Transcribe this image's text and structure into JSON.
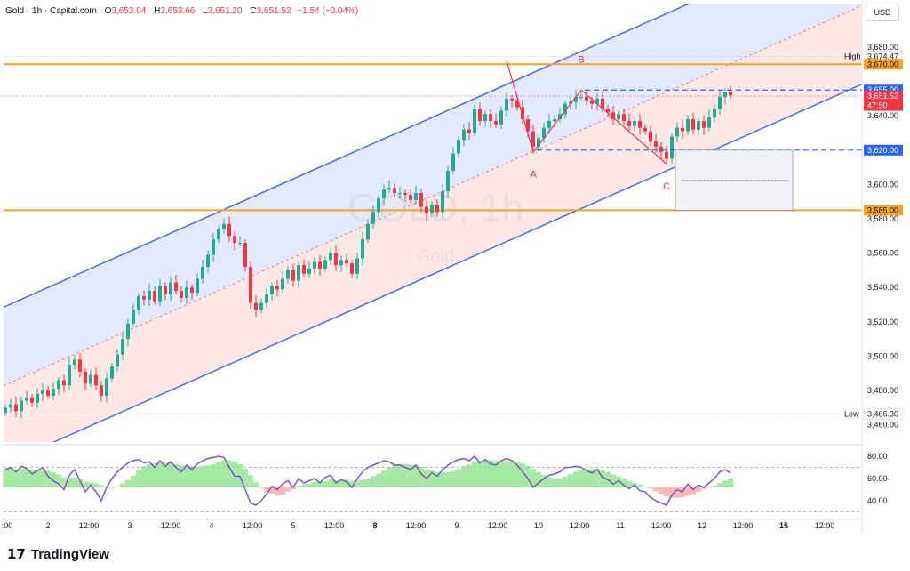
{
  "header": {
    "symbol": "Gold · 1h · Capital.com",
    "open_label": "O",
    "open": "3,653.04",
    "high_label": "H",
    "high": "3,653.66",
    "low_label": "L",
    "low": "3,651.20",
    "close_label": "C",
    "close": "3,651.52",
    "change": "−1.54 (−0.04%)"
  },
  "currency_button": "USD",
  "brand": "TradingView",
  "watermark": {
    "title": "GOLD, 1h",
    "subtitle": "Gold"
  },
  "colors": {
    "up": "#22ab94",
    "down": "#f23645",
    "channel_line": "#4a6fe3",
    "upper_fill": "#dfe6fb",
    "lower_fill": "#fde4e4",
    "level": "#f7a226",
    "rsi_line": "#7e57c2",
    "rsi_fill_up": "#8ee38e",
    "rsi_fill_down": "#f9a5a5"
  },
  "chart_data": {
    "type": "candlestick",
    "y_axis": {
      "ticks": [
        "3,460.00",
        "3,480.00",
        "3,500.00",
        "3,520.00",
        "3,540.00",
        "3,560.00",
        "3,580.00",
        "3,600.00",
        "3,620.00",
        "3,640.00",
        "3,680.00"
      ],
      "tick_values": [
        3460,
        3480,
        3500,
        3520,
        3540,
        3560,
        3580,
        3600,
        3620,
        3640,
        3680
      ],
      "range": [
        3450,
        3695
      ]
    },
    "x_axis": {
      "labels": [
        ":00",
        "2",
        "12:00",
        "3",
        "12:00",
        "4",
        "12:00",
        "5",
        "12:00",
        "8",
        "12:00",
        "9",
        "12:00",
        "10",
        "12:00",
        "11",
        "12:00",
        "12",
        "12:00",
        "15",
        "12:00"
      ],
      "bold": [
        "8",
        "15"
      ]
    },
    "price_labels": [
      {
        "text": "3,674.47",
        "value": 3674.47,
        "kind": "high"
      },
      {
        "text": "3,670.00",
        "value": 3670,
        "kind": "level"
      },
      {
        "text": "3,655.00",
        "value": 3655,
        "kind": "blue"
      },
      {
        "text": "3,651.52",
        "value": 3651.52,
        "kind": "price"
      },
      {
        "text": "47:50",
        "value": 3646,
        "kind": "timer"
      },
      {
        "text": "3,620.00",
        "value": 3620,
        "kind": "blue"
      },
      {
        "text": "3,585.00",
        "value": 3585,
        "kind": "level"
      },
      {
        "text": "3,466.30",
        "value": 3466.3,
        "kind": "low"
      }
    ],
    "high_tag": "High",
    "low_tag": "Low",
    "horizontal_levels": [
      3670,
      3585
    ],
    "dashed_levels": [
      3655,
      3620
    ],
    "pattern_labels": [
      {
        "text": "A",
        "index": 99
      },
      {
        "text": "B",
        "index": 108
      },
      {
        "text": "C",
        "index": 124
      }
    ],
    "closes": [
      3470,
      3472,
      3468,
      3474,
      3476,
      3473,
      3478,
      3480,
      3477,
      3481,
      3486,
      3483,
      3495,
      3498,
      3491,
      3484,
      3489,
      3483,
      3477,
      3487,
      3494,
      3501,
      3510,
      3519,
      3527,
      3535,
      3533,
      3538,
      3532,
      3541,
      3536,
      3543,
      3538,
      3534,
      3540,
      3537,
      3545,
      3552,
      3559,
      3568,
      3574,
      3577,
      3570,
      3566,
      3566,
      3552,
      3531,
      3527,
      3531,
      3536,
      3541,
      3539,
      3545,
      3550,
      3544,
      3553,
      3548,
      3551,
      3555,
      3551,
      3556,
      3560,
      3553,
      3556,
      3554,
      3548,
      3557,
      3568,
      3577,
      3584,
      3592,
      3597,
      3598,
      3595,
      3595,
      3594,
      3591,
      3595,
      3587,
      3583,
      3588,
      3584,
      3596,
      3608,
      3618,
      3626,
      3632,
      3630,
      3644,
      3637,
      3641,
      3637,
      3635,
      3643,
      3650,
      3649,
      3645,
      3638,
      3631,
      3622,
      3627,
      3633,
      3637,
      3638,
      3641,
      3647,
      3648,
      3651,
      3651,
      3649,
      3647,
      3650,
      3644,
      3642,
      3638,
      3641,
      3637,
      3634,
      3637,
      3633,
      3631,
      3625,
      3622,
      3619,
      3615,
      3628,
      3633,
      3631,
      3638,
      3632,
      3637,
      3633,
      3639,
      3644,
      3651,
      3654,
      3652
    ],
    "rsi": {
      "ticks": [
        "80.00",
        "60.00",
        "40.00"
      ],
      "tick_values": [
        80,
        60,
        40
      ],
      "range": [
        28,
        88
      ],
      "band": [
        70,
        30
      ],
      "values": [
        68,
        70,
        66,
        71,
        69,
        64,
        67,
        70,
        62,
        58,
        55,
        50,
        63,
        68,
        58,
        48,
        54,
        48,
        40,
        52,
        60,
        66,
        70,
        74,
        76,
        77,
        74,
        75,
        70,
        76,
        71,
        75,
        70,
        66,
        72,
        68,
        73,
        76,
        78,
        79,
        80,
        79,
        70,
        62,
        62,
        50,
        38,
        36,
        40,
        46,
        53,
        50,
        55,
        58,
        52,
        60,
        56,
        58,
        60,
        56,
        61,
        63,
        56,
        59,
        57,
        52,
        60,
        66,
        70,
        72,
        74,
        76,
        75,
        72,
        72,
        70,
        68,
        72,
        64,
        60,
        65,
        62,
        68,
        72,
        75,
        77,
        78,
        76,
        80,
        74,
        77,
        73,
        72,
        76,
        78,
        76,
        72,
        66,
        60,
        52,
        56,
        60,
        63,
        64,
        66,
        70,
        70,
        71,
        70,
        67,
        65,
        68,
        61,
        59,
        55,
        58,
        54,
        51,
        54,
        49,
        48,
        43,
        40,
        38,
        36,
        45,
        50,
        48,
        55,
        50,
        54,
        52,
        56,
        60,
        66,
        68,
        65
      ]
    }
  }
}
